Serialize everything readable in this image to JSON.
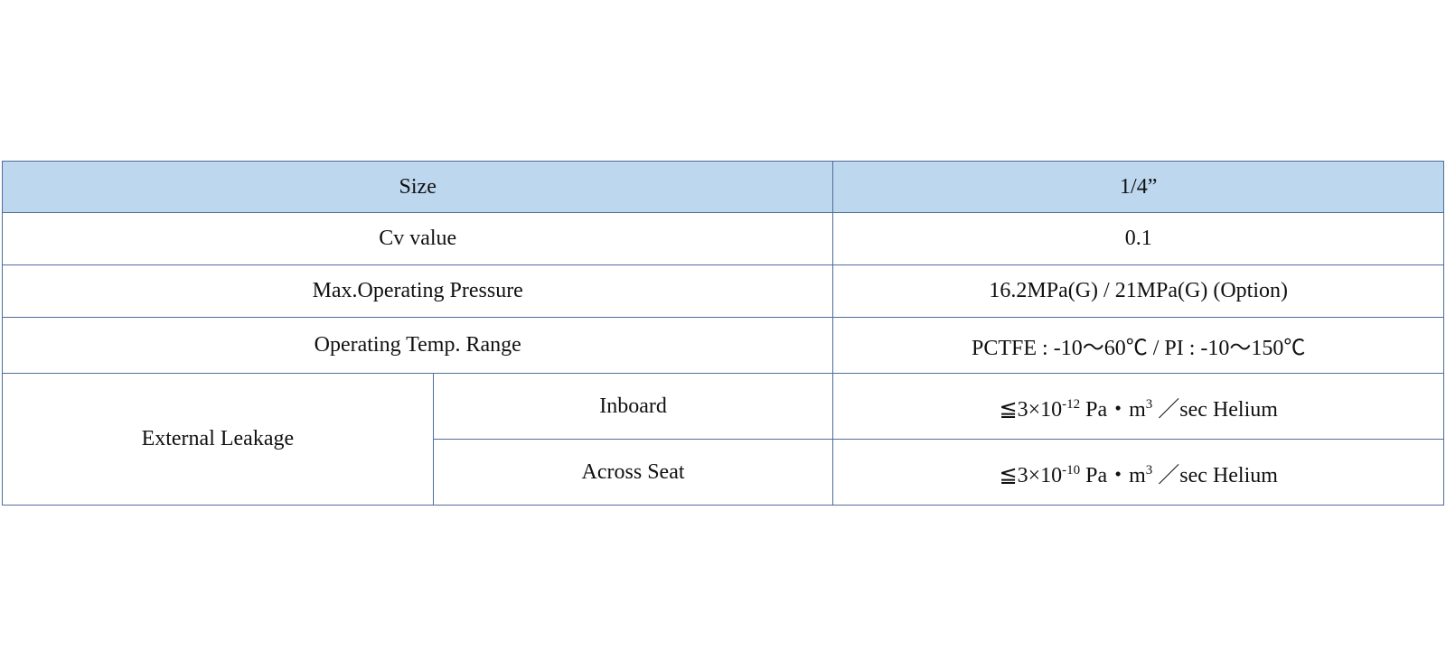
{
  "table": {
    "header": [
      "Size",
      "1/4”"
    ],
    "rows": [
      [
        "Cv value",
        "0.1"
      ],
      [
        "Max.Operating Pressure",
        "16.2MPa(G) / 21MPa(G) (Option)"
      ],
      [
        "Operating Temp. Range",
        "PCTFE : -10～60℃ / PI : -10～150℃"
      ]
    ],
    "leakage": {
      "label": "External Leakage",
      "items": [
        {
          "label": "Inboard",
          "value": [
            "≦3×10",
            "-12",
            " Pa・m",
            "3",
            " ／sec Helium"
          ]
        },
        {
          "label": "Across Seat",
          "value": [
            "≦3×10",
            "-10",
            " Pa・m",
            "3",
            " ／sec Helium"
          ]
        }
      ]
    }
  }
}
